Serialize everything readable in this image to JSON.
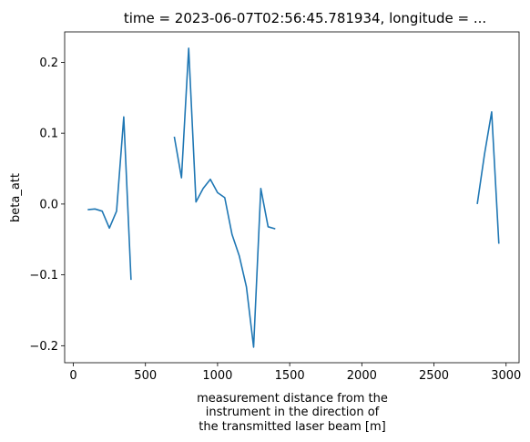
{
  "chart_data": {
    "type": "line",
    "title": "time = 2023-06-07T02:56:45.781934, longitude = ...",
    "xlabel_lines": [
      "measurement distance from the",
      "instrument in the direction of",
      "the transmitted laser beam [m]"
    ],
    "ylabel": "beta_att",
    "xlim": [
      -60,
      3090
    ],
    "ylim": [
      -0.224,
      0.243
    ],
    "xticks": [
      0,
      500,
      1000,
      1500,
      2000,
      2500,
      3000
    ],
    "yticks": [
      -0.2,
      -0.1,
      0.0,
      0.1,
      0.2
    ],
    "xtick_labels": [
      "0",
      "500",
      "1000",
      "1500",
      "2000",
      "2500",
      "3000"
    ],
    "ytick_labels": [
      "−0.2",
      "−0.1",
      "0.0",
      "0.1",
      "0.2"
    ],
    "grid": false,
    "series_color": "#1f77b4",
    "segments": [
      [
        [
          100,
          -0.008
        ],
        [
          150,
          -0.007
        ],
        [
          200,
          -0.01
        ],
        [
          250,
          -0.034
        ],
        [
          300,
          -0.01
        ],
        [
          350,
          0.123
        ],
        [
          400,
          -0.107
        ]
      ],
      [
        [
          700,
          0.095
        ],
        [
          750,
          0.037
        ],
        [
          800,
          0.22
        ],
        [
          850,
          0.003
        ],
        [
          900,
          0.022
        ],
        [
          950,
          0.035
        ],
        [
          1000,
          0.016
        ],
        [
          1050,
          0.009
        ],
        [
          1100,
          -0.043
        ],
        [
          1150,
          -0.073
        ],
        [
          1200,
          -0.117
        ],
        [
          1250,
          -0.202
        ],
        [
          1300,
          0.022
        ],
        [
          1350,
          -0.032
        ],
        [
          1400,
          -0.035
        ]
      ],
      [
        [
          2800,
          0.0
        ],
        [
          2850,
          0.07
        ],
        [
          2900,
          0.13
        ],
        [
          2950,
          -0.056
        ]
      ]
    ]
  }
}
